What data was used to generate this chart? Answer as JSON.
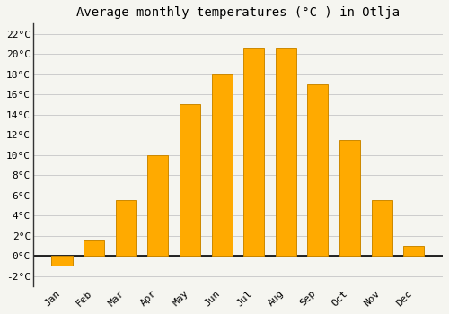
{
  "title": "Average monthly temperatures (°C ) in Otlja",
  "months": [
    "Jan",
    "Feb",
    "Mar",
    "Apr",
    "May",
    "Jun",
    "Jul",
    "Aug",
    "Sep",
    "Oct",
    "Nov",
    "Dec"
  ],
  "temperatures": [
    -1.0,
    1.5,
    5.5,
    10.0,
    15.0,
    18.0,
    20.5,
    20.5,
    17.0,
    11.5,
    5.5,
    1.0
  ],
  "bar_color": "#FFAA00",
  "bar_edge_color": "#CC8800",
  "ylim": [
    -3,
    23
  ],
  "yticks": [
    -2,
    0,
    2,
    4,
    6,
    8,
    10,
    12,
    14,
    16,
    18,
    20,
    22
  ],
  "background_color": "#F5F5F0",
  "plot_bg_color": "#F5F5F0",
  "grid_color": "#CCCCCC",
  "title_fontsize": 10,
  "tick_fontsize": 8,
  "font_family": "monospace",
  "left_spine_color": "#333333"
}
